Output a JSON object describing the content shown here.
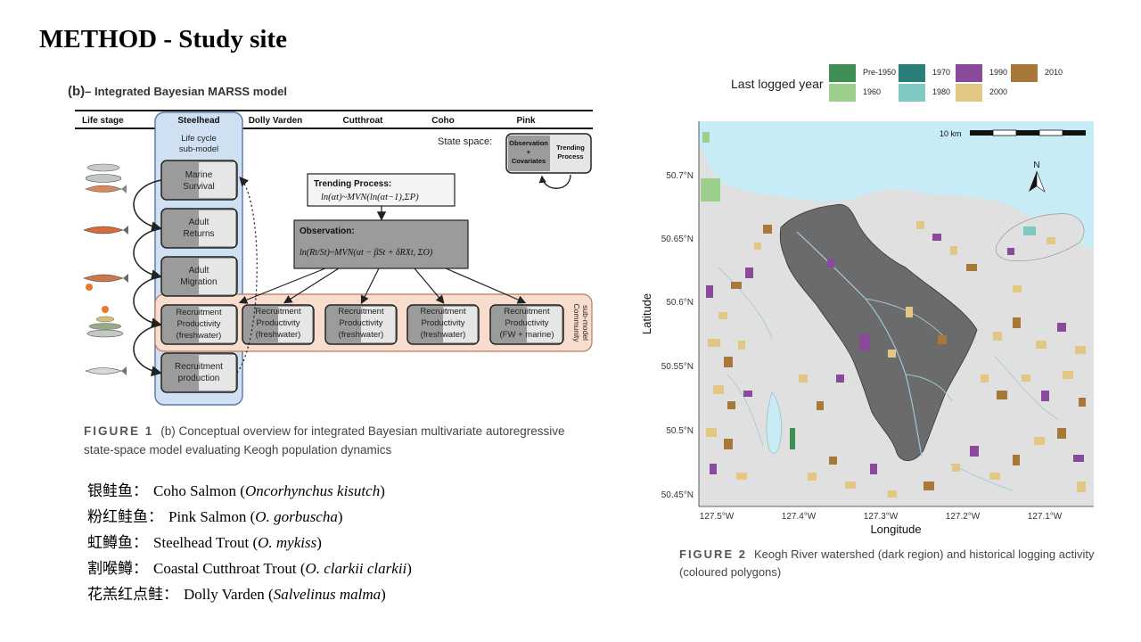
{
  "slide": {
    "title": "METHOD - Study site"
  },
  "figure1": {
    "heading_b": "(b)",
    "heading_text": "– Integrated Bayesian MARSS model",
    "columns": [
      "Life stage",
      "Steelhead",
      "Dolly Varden",
      "Cutthroat",
      "Coho",
      "Pink"
    ],
    "lifecycle_label": [
      "Life cycle",
      "sub-model"
    ],
    "stages": [
      [
        "Marine",
        "Survival"
      ],
      [
        "Adult",
        "Returns"
      ],
      [
        "Adult",
        "Migration"
      ],
      [
        "Recruitment",
        "Productivity",
        "(freshwater)"
      ],
      [
        "Recruitment",
        "production"
      ]
    ],
    "community_boxes": [
      [
        "Recruitment",
        "Productivity",
        "(freshwater)"
      ],
      [
        "Recruitment",
        "Productivity",
        "(freshwater)"
      ],
      [
        "Recruitment",
        "Productivity",
        "(freshwater)"
      ],
      [
        "Recruitment",
        "Productivity",
        "(FW + marine)"
      ]
    ],
    "community_label": [
      "Community",
      "sub-model"
    ],
    "state_space_label": "State space:",
    "obs_box": [
      "Observation",
      "+",
      "Covariates"
    ],
    "trend_box": [
      "Trending",
      "Process"
    ],
    "trending_title": "Trending Process:",
    "trending_eq": "ln(αt)~MVN(ln(αt−1),ΣP)",
    "observation_title": "Observation:",
    "observation_eq": "ln(Rt/St)~MVN(αt − βSt + δRXt, ΣO)",
    "caption_label": "FIGURE 1",
    "caption_line1": "(b) Conceptual overview for integrated  Bayesian multivariate autoregressive",
    "caption_line2": "state-space model evaluating Keogh population dynamics"
  },
  "species": [
    {
      "cn": "银鲑鱼：",
      "en": "Coho Salmon (",
      "sci": "Oncorhynchus kisutch",
      "end": ")"
    },
    {
      "cn": "粉红鲑鱼：",
      "en": "Pink Salmon (",
      "sci": "O. gorbuscha",
      "end": ")"
    },
    {
      "cn": "虹鳟鱼：",
      "en": "Steelhead Trout (",
      "sci": "O. mykiss",
      "end": ")"
    },
    {
      "cn": "割喉鳟：",
      "en": "Coastal Cutthroat Trout (",
      "sci": "O. clarkii clarkii",
      "end": ")"
    },
    {
      "cn": "花羔红点鲑：",
      "en": "Dolly Varden (",
      "sci": "Salvelinus malma",
      "end": ")"
    }
  ],
  "figure2": {
    "legend_title": "Last logged year",
    "legend": [
      {
        "label": "Pre-1950",
        "color": "#3f8f55"
      },
      {
        "label": "1960",
        "color": "#9ccf8c"
      },
      {
        "label": "1970",
        "color": "#2b7f7a"
      },
      {
        "label": "1980",
        "color": "#7ec9c1"
      },
      {
        "label": "1990",
        "color": "#8a4a9b"
      },
      {
        "label": "2000",
        "color": "#e1c684"
      },
      {
        "label": "2010",
        "color": "#a8773a"
      }
    ],
    "scalebar_label": "10 km",
    "north_label": "N",
    "y_ticks": [
      "50.7°N",
      "50.65°N",
      "50.6°N",
      "50.55°N",
      "50.5°N",
      "50.45°N"
    ],
    "x_ticks": [
      "127.5°W",
      "127.4°W",
      "127.3°W",
      "127.2°W",
      "127.1°W"
    ],
    "ylabel": "Latitude",
    "xlabel": "Longitude",
    "colors": {
      "water": "#c8ecf6",
      "land": "#e0e0e0",
      "watershed": "#6b6b6b",
      "river": "#9cc7d8"
    },
    "caption_label": "FIGURE 2",
    "caption_line1": "Keogh River watershed (dark region) and historical logging activity",
    "caption_line2": "(coloured polygons)"
  }
}
